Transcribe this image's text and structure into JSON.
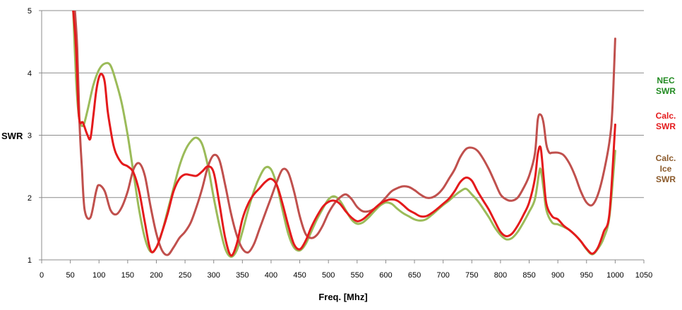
{
  "chart_data": {
    "type": "line",
    "title": "",
    "xlabel": "Freq. [Mhz]",
    "ylabel": "SWR",
    "xlim": [
      0,
      1050
    ],
    "ylim": [
      1,
      5
    ],
    "x_ticks": [
      "0",
      "50",
      "100",
      "150",
      "200",
      "250",
      "300",
      "350",
      "400",
      "450",
      "500",
      "550",
      "600",
      "650",
      "700",
      "750",
      "800",
      "850",
      "900",
      "950",
      "1000",
      "1050"
    ],
    "y_ticks": [
      "1",
      "2",
      "3",
      "4",
      "5"
    ],
    "grid": "horizontal",
    "legend_position": "right",
    "series": [
      {
        "name": "NEC SWR",
        "legend_lines": [
          "NEC",
          "SWR"
        ],
        "color": "#9bbb59",
        "legend_color": "#228b22",
        "points": [
          [
            55,
            5.0
          ],
          [
            60,
            3.9
          ],
          [
            65,
            3.3
          ],
          [
            72,
            3.15
          ],
          [
            80,
            3.4
          ],
          [
            90,
            3.8
          ],
          [
            100,
            4.05
          ],
          [
            110,
            4.15
          ],
          [
            120,
            4.12
          ],
          [
            130,
            3.85
          ],
          [
            140,
            3.5
          ],
          [
            150,
            3.0
          ],
          [
            160,
            2.4
          ],
          [
            170,
            1.8
          ],
          [
            180,
            1.35
          ],
          [
            190,
            1.13
          ],
          [
            200,
            1.2
          ],
          [
            210,
            1.45
          ],
          [
            220,
            1.8
          ],
          [
            230,
            2.15
          ],
          [
            240,
            2.5
          ],
          [
            250,
            2.75
          ],
          [
            260,
            2.9
          ],
          [
            270,
            2.96
          ],
          [
            280,
            2.85
          ],
          [
            290,
            2.5
          ],
          [
            300,
            2.0
          ],
          [
            310,
            1.55
          ],
          [
            320,
            1.18
          ],
          [
            330,
            1.05
          ],
          [
            340,
            1.15
          ],
          [
            350,
            1.45
          ],
          [
            360,
            1.8
          ],
          [
            370,
            2.1
          ],
          [
            380,
            2.33
          ],
          [
            390,
            2.48
          ],
          [
            400,
            2.45
          ],
          [
            410,
            2.2
          ],
          [
            420,
            1.8
          ],
          [
            430,
            1.42
          ],
          [
            440,
            1.2
          ],
          [
            450,
            1.15
          ],
          [
            460,
            1.25
          ],
          [
            470,
            1.45
          ],
          [
            480,
            1.65
          ],
          [
            490,
            1.82
          ],
          [
            500,
            1.97
          ],
          [
            510,
            2.02
          ],
          [
            520,
            1.95
          ],
          [
            530,
            1.8
          ],
          [
            540,
            1.65
          ],
          [
            550,
            1.58
          ],
          [
            560,
            1.6
          ],
          [
            570,
            1.68
          ],
          [
            580,
            1.78
          ],
          [
            590,
            1.87
          ],
          [
            600,
            1.92
          ],
          [
            610,
            1.9
          ],
          [
            620,
            1.82
          ],
          [
            630,
            1.75
          ],
          [
            640,
            1.7
          ],
          [
            650,
            1.65
          ],
          [
            660,
            1.63
          ],
          [
            670,
            1.65
          ],
          [
            680,
            1.72
          ],
          [
            690,
            1.8
          ],
          [
            700,
            1.88
          ],
          [
            710,
            1.95
          ],
          [
            720,
            2.03
          ],
          [
            730,
            2.1
          ],
          [
            740,
            2.14
          ],
          [
            750,
            2.05
          ],
          [
            760,
            1.95
          ],
          [
            770,
            1.82
          ],
          [
            780,
            1.68
          ],
          [
            790,
            1.52
          ],
          [
            800,
            1.4
          ],
          [
            810,
            1.33
          ],
          [
            820,
            1.35
          ],
          [
            830,
            1.45
          ],
          [
            840,
            1.6
          ],
          [
            850,
            1.77
          ],
          [
            860,
            1.97
          ],
          [
            867,
            2.38
          ],
          [
            870,
            2.45
          ],
          [
            875,
            2.15
          ],
          [
            880,
            1.8
          ],
          [
            890,
            1.6
          ],
          [
            900,
            1.57
          ],
          [
            910,
            1.53
          ],
          [
            920,
            1.48
          ],
          [
            930,
            1.4
          ],
          [
            940,
            1.3
          ],
          [
            950,
            1.17
          ],
          [
            960,
            1.09
          ],
          [
            970,
            1.18
          ],
          [
            980,
            1.35
          ],
          [
            990,
            1.7
          ],
          [
            1000,
            2.75
          ]
        ]
      },
      {
        "name": "Calc. SWR",
        "legend_lines": [
          "Calc.",
          "SWR"
        ],
        "color": "#e41a1c",
        "legend_color": "#e41a1c",
        "points": [
          [
            55,
            5.0
          ],
          [
            60,
            4.4
          ],
          [
            65,
            3.3
          ],
          [
            72,
            3.2
          ],
          [
            80,
            3.0
          ],
          [
            85,
            2.95
          ],
          [
            90,
            3.3
          ],
          [
            95,
            3.7
          ],
          [
            100,
            3.93
          ],
          [
            105,
            3.98
          ],
          [
            110,
            3.85
          ],
          [
            115,
            3.4
          ],
          [
            120,
            3.1
          ],
          [
            125,
            2.85
          ],
          [
            130,
            2.7
          ],
          [
            140,
            2.55
          ],
          [
            150,
            2.5
          ],
          [
            160,
            2.4
          ],
          [
            170,
            2.1
          ],
          [
            180,
            1.6
          ],
          [
            190,
            1.15
          ],
          [
            200,
            1.2
          ],
          [
            210,
            1.45
          ],
          [
            220,
            1.75
          ],
          [
            230,
            2.1
          ],
          [
            240,
            2.3
          ],
          [
            250,
            2.37
          ],
          [
            260,
            2.36
          ],
          [
            270,
            2.35
          ],
          [
            280,
            2.42
          ],
          [
            290,
            2.5
          ],
          [
            300,
            2.4
          ],
          [
            310,
            1.9
          ],
          [
            320,
            1.35
          ],
          [
            330,
            1.07
          ],
          [
            340,
            1.25
          ],
          [
            350,
            1.65
          ],
          [
            360,
            1.9
          ],
          [
            370,
            2.05
          ],
          [
            380,
            2.15
          ],
          [
            390,
            2.25
          ],
          [
            400,
            2.3
          ],
          [
            410,
            2.2
          ],
          [
            420,
            1.9
          ],
          [
            430,
            1.55
          ],
          [
            440,
            1.25
          ],
          [
            450,
            1.17
          ],
          [
            460,
            1.3
          ],
          [
            470,
            1.52
          ],
          [
            480,
            1.7
          ],
          [
            490,
            1.85
          ],
          [
            500,
            1.93
          ],
          [
            510,
            1.95
          ],
          [
            520,
            1.9
          ],
          [
            530,
            1.78
          ],
          [
            540,
            1.68
          ],
          [
            550,
            1.62
          ],
          [
            560,
            1.65
          ],
          [
            570,
            1.73
          ],
          [
            580,
            1.82
          ],
          [
            590,
            1.9
          ],
          [
            600,
            1.95
          ],
          [
            610,
            1.97
          ],
          [
            620,
            1.95
          ],
          [
            630,
            1.88
          ],
          [
            640,
            1.8
          ],
          [
            650,
            1.75
          ],
          [
            660,
            1.7
          ],
          [
            670,
            1.7
          ],
          [
            680,
            1.75
          ],
          [
            690,
            1.82
          ],
          [
            700,
            1.9
          ],
          [
            710,
            1.98
          ],
          [
            720,
            2.1
          ],
          [
            730,
            2.25
          ],
          [
            740,
            2.32
          ],
          [
            750,
            2.27
          ],
          [
            760,
            2.1
          ],
          [
            770,
            1.95
          ],
          [
            780,
            1.8
          ],
          [
            790,
            1.62
          ],
          [
            800,
            1.45
          ],
          [
            810,
            1.38
          ],
          [
            820,
            1.42
          ],
          [
            830,
            1.55
          ],
          [
            840,
            1.72
          ],
          [
            850,
            1.92
          ],
          [
            860,
            2.3
          ],
          [
            865,
            2.7
          ],
          [
            870,
            2.8
          ],
          [
            875,
            2.35
          ],
          [
            880,
            1.9
          ],
          [
            890,
            1.7
          ],
          [
            900,
            1.65
          ],
          [
            910,
            1.55
          ],
          [
            920,
            1.48
          ],
          [
            930,
            1.4
          ],
          [
            940,
            1.3
          ],
          [
            950,
            1.18
          ],
          [
            960,
            1.1
          ],
          [
            970,
            1.2
          ],
          [
            980,
            1.45
          ],
          [
            990,
            1.75
          ],
          [
            1000,
            3.17
          ]
        ]
      },
      {
        "name": "Calc. Ice SWR",
        "legend_lines": [
          "Calc.",
          "Ice",
          "SWR"
        ],
        "color": "#c0504d",
        "legend_color": "#8b5a2b",
        "points": [
          [
            58,
            5.0
          ],
          [
            62,
            4.4
          ],
          [
            66,
            3.2
          ],
          [
            70,
            2.5
          ],
          [
            75,
            1.8
          ],
          [
            85,
            1.68
          ],
          [
            95,
            2.1
          ],
          [
            100,
            2.2
          ],
          [
            110,
            2.1
          ],
          [
            120,
            1.8
          ],
          [
            130,
            1.73
          ],
          [
            140,
            1.85
          ],
          [
            150,
            2.1
          ],
          [
            160,
            2.45
          ],
          [
            170,
            2.55
          ],
          [
            180,
            2.35
          ],
          [
            190,
            1.85
          ],
          [
            200,
            1.42
          ],
          [
            210,
            1.15
          ],
          [
            220,
            1.08
          ],
          [
            230,
            1.2
          ],
          [
            240,
            1.35
          ],
          [
            250,
            1.45
          ],
          [
            260,
            1.6
          ],
          [
            270,
            1.85
          ],
          [
            280,
            2.15
          ],
          [
            290,
            2.5
          ],
          [
            300,
            2.68
          ],
          [
            310,
            2.6
          ],
          [
            320,
            2.2
          ],
          [
            330,
            1.75
          ],
          [
            340,
            1.4
          ],
          [
            350,
            1.18
          ],
          [
            360,
            1.12
          ],
          [
            370,
            1.25
          ],
          [
            380,
            1.5
          ],
          [
            390,
            1.75
          ],
          [
            400,
            2.0
          ],
          [
            410,
            2.25
          ],
          [
            420,
            2.45
          ],
          [
            430,
            2.4
          ],
          [
            440,
            2.1
          ],
          [
            450,
            1.7
          ],
          [
            460,
            1.42
          ],
          [
            470,
            1.35
          ],
          [
            480,
            1.4
          ],
          [
            490,
            1.55
          ],
          [
            500,
            1.75
          ],
          [
            510,
            1.9
          ],
          [
            520,
            2.0
          ],
          [
            530,
            2.05
          ],
          [
            540,
            1.98
          ],
          [
            550,
            1.85
          ],
          [
            560,
            1.78
          ],
          [
            570,
            1.78
          ],
          [
            580,
            1.82
          ],
          [
            590,
            1.9
          ],
          [
            600,
            2.0
          ],
          [
            610,
            2.1
          ],
          [
            620,
            2.15
          ],
          [
            630,
            2.18
          ],
          [
            640,
            2.17
          ],
          [
            650,
            2.12
          ],
          [
            660,
            2.05
          ],
          [
            670,
            2.0
          ],
          [
            680,
            2.0
          ],
          [
            690,
            2.05
          ],
          [
            700,
            2.15
          ],
          [
            710,
            2.3
          ],
          [
            720,
            2.45
          ],
          [
            730,
            2.65
          ],
          [
            740,
            2.78
          ],
          [
            750,
            2.8
          ],
          [
            760,
            2.75
          ],
          [
            770,
            2.62
          ],
          [
            780,
            2.45
          ],
          [
            790,
            2.25
          ],
          [
            800,
            2.05
          ],
          [
            810,
            1.97
          ],
          [
            820,
            1.95
          ],
          [
            830,
            2.0
          ],
          [
            840,
            2.15
          ],
          [
            850,
            2.35
          ],
          [
            860,
            2.7
          ],
          [
            865,
            3.25
          ],
          [
            870,
            3.33
          ],
          [
            875,
            3.2
          ],
          [
            880,
            2.85
          ],
          [
            885,
            2.72
          ],
          [
            890,
            2.72
          ],
          [
            900,
            2.72
          ],
          [
            910,
            2.68
          ],
          [
            920,
            2.55
          ],
          [
            930,
            2.35
          ],
          [
            940,
            2.1
          ],
          [
            950,
            1.92
          ],
          [
            960,
            1.88
          ],
          [
            970,
            2.05
          ],
          [
            980,
            2.4
          ],
          [
            990,
            2.9
          ],
          [
            995,
            3.4
          ],
          [
            1000,
            4.55
          ]
        ]
      }
    ]
  }
}
